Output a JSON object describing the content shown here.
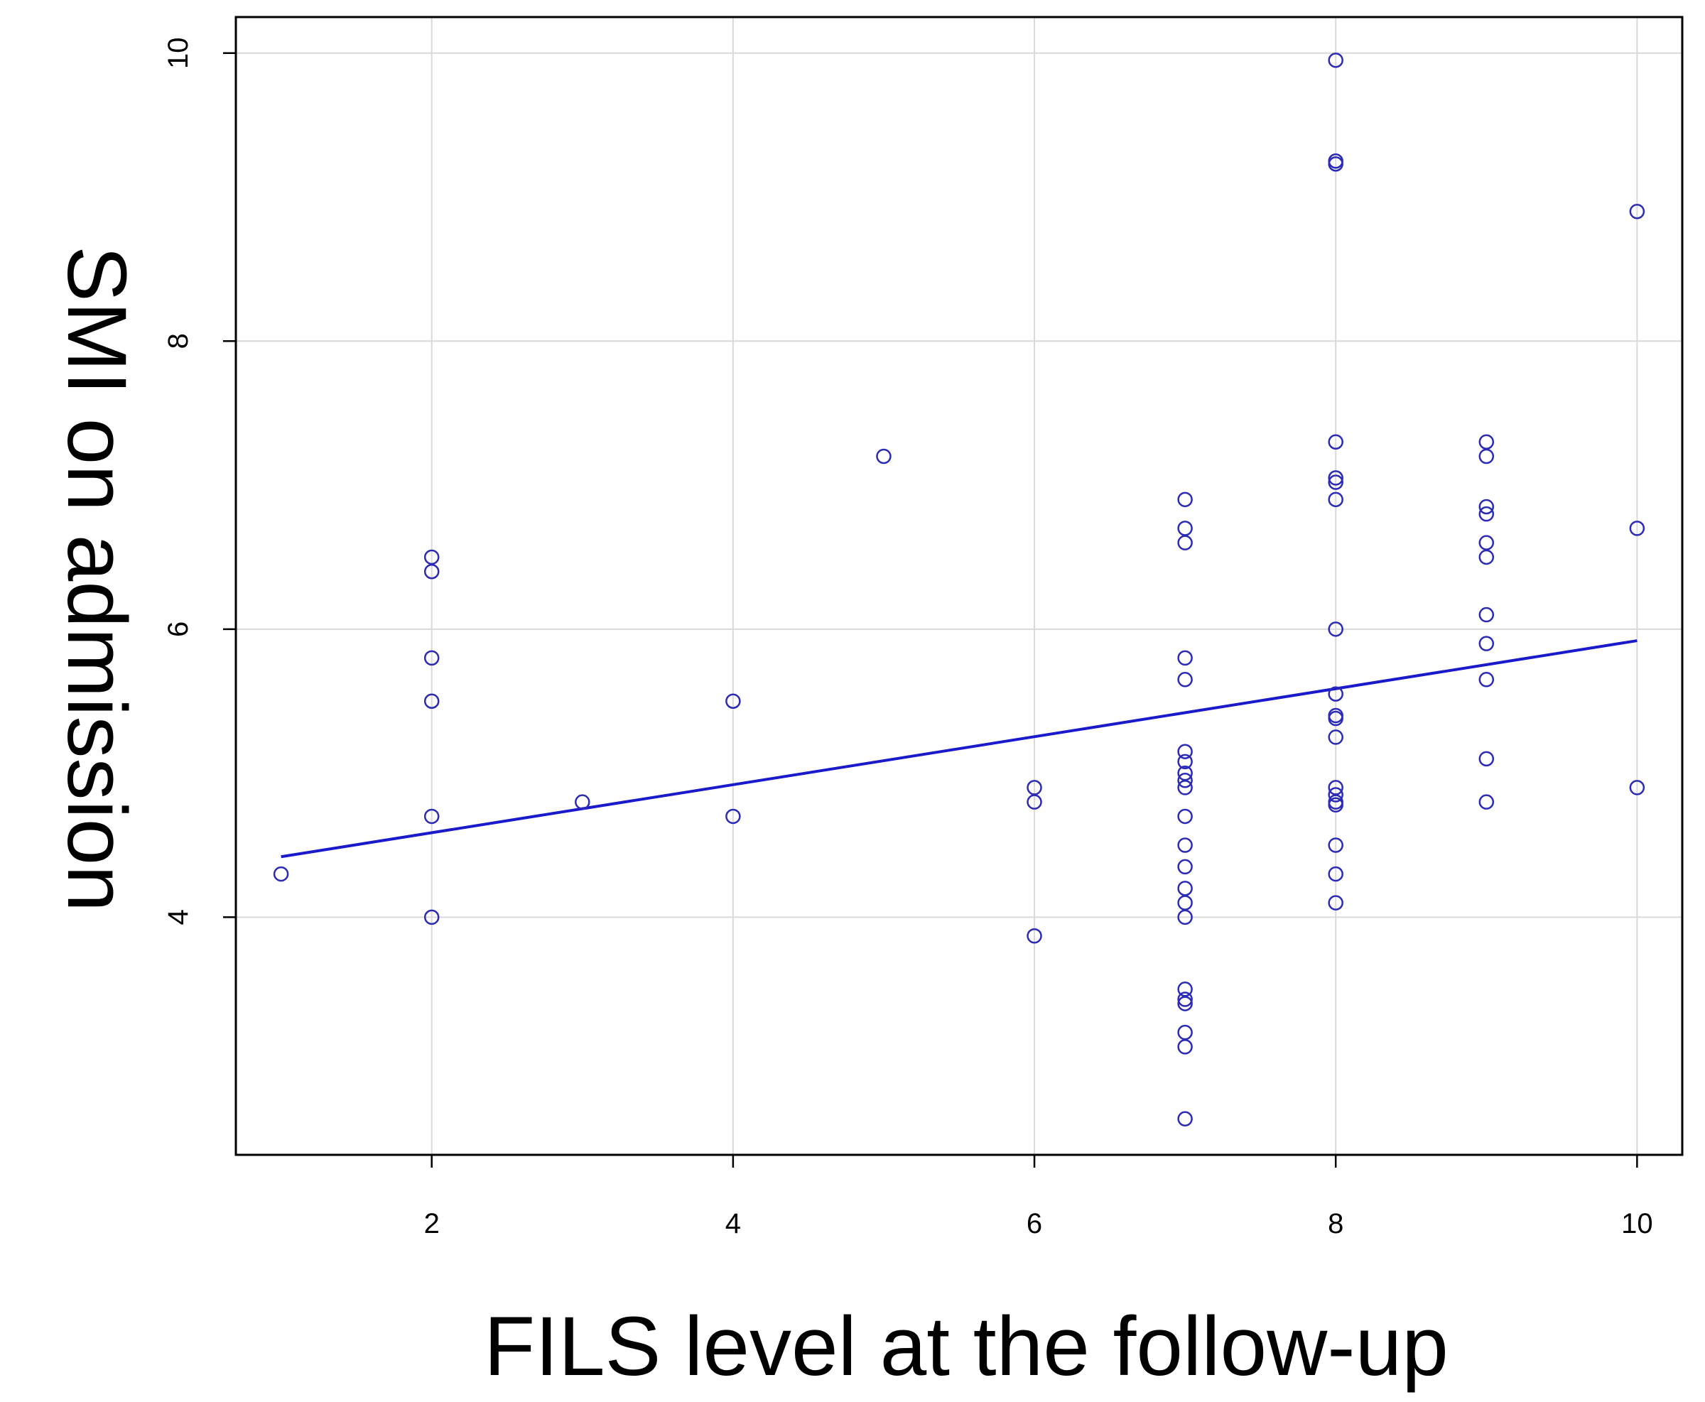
{
  "chart_data": {
    "type": "scatter",
    "title": "",
    "xlabel": "FILS level at the follow-up",
    "ylabel": "SMI on admission",
    "xlim": [
      0.7,
      10.3
    ],
    "ylim": [
      2.35,
      10.25
    ],
    "xticks": [
      2,
      4,
      6,
      8,
      10
    ],
    "yticks": [
      4,
      6,
      8,
      10
    ],
    "xtick_labels": [
      "2",
      "4",
      "6",
      "8",
      "10"
    ],
    "ytick_labels": [
      "4",
      "6",
      "8",
      "10"
    ],
    "grid": true,
    "point_color": "#2b2bb8",
    "line_color": "#1a1acc",
    "grid_color": "#d9d9d9",
    "points": [
      {
        "x": 1,
        "y": 4.3
      },
      {
        "x": 2,
        "y": 6.5
      },
      {
        "x": 2,
        "y": 6.4
      },
      {
        "x": 2,
        "y": 5.8
      },
      {
        "x": 2,
        "y": 5.5
      },
      {
        "x": 2,
        "y": 4.7
      },
      {
        "x": 2,
        "y": 4.0
      },
      {
        "x": 3,
        "y": 4.8
      },
      {
        "x": 4,
        "y": 5.5
      },
      {
        "x": 4,
        "y": 4.7
      },
      {
        "x": 5,
        "y": 7.2
      },
      {
        "x": 6,
        "y": 4.9
      },
      {
        "x": 6,
        "y": 4.8
      },
      {
        "x": 6,
        "y": 3.87
      },
      {
        "x": 7,
        "y": 6.9
      },
      {
        "x": 7,
        "y": 6.7
      },
      {
        "x": 7,
        "y": 6.6
      },
      {
        "x": 7,
        "y": 5.8
      },
      {
        "x": 7,
        "y": 5.65
      },
      {
        "x": 7,
        "y": 5.15
      },
      {
        "x": 7,
        "y": 5.08
      },
      {
        "x": 7,
        "y": 5.0
      },
      {
        "x": 7,
        "y": 4.95
      },
      {
        "x": 7,
        "y": 4.9
      },
      {
        "x": 7,
        "y": 4.7
      },
      {
        "x": 7,
        "y": 4.5
      },
      {
        "x": 7,
        "y": 4.35
      },
      {
        "x": 7,
        "y": 4.2
      },
      {
        "x": 7,
        "y": 4.1
      },
      {
        "x": 7,
        "y": 4.0
      },
      {
        "x": 7,
        "y": 3.5
      },
      {
        "x": 7,
        "y": 3.43
      },
      {
        "x": 7,
        "y": 3.4
      },
      {
        "x": 7,
        "y": 3.2
      },
      {
        "x": 7,
        "y": 3.1
      },
      {
        "x": 7,
        "y": 2.6
      },
      {
        "x": 8,
        "y": 9.95
      },
      {
        "x": 8,
        "y": 9.25
      },
      {
        "x": 8,
        "y": 9.23
      },
      {
        "x": 8,
        "y": 7.3
      },
      {
        "x": 8,
        "y": 7.05
      },
      {
        "x": 8,
        "y": 7.02
      },
      {
        "x": 8,
        "y": 6.9
      },
      {
        "x": 8,
        "y": 6.0
      },
      {
        "x": 8,
        "y": 5.55
      },
      {
        "x": 8,
        "y": 5.4
      },
      {
        "x": 8,
        "y": 5.38
      },
      {
        "x": 8,
        "y": 5.25
      },
      {
        "x": 8,
        "y": 4.9
      },
      {
        "x": 8,
        "y": 4.85
      },
      {
        "x": 8,
        "y": 4.8
      },
      {
        "x": 8,
        "y": 4.78
      },
      {
        "x": 8,
        "y": 4.5
      },
      {
        "x": 8,
        "y": 4.3
      },
      {
        "x": 8,
        "y": 4.1
      },
      {
        "x": 9,
        "y": 7.3
      },
      {
        "x": 9,
        "y": 7.2
      },
      {
        "x": 9,
        "y": 6.85
      },
      {
        "x": 9,
        "y": 6.8
      },
      {
        "x": 9,
        "y": 6.6
      },
      {
        "x": 9,
        "y": 6.5
      },
      {
        "x": 9,
        "y": 6.1
      },
      {
        "x": 9,
        "y": 5.9
      },
      {
        "x": 9,
        "y": 5.65
      },
      {
        "x": 9,
        "y": 5.1
      },
      {
        "x": 9,
        "y": 4.8
      },
      {
        "x": 10,
        "y": 8.9
      },
      {
        "x": 10,
        "y": 6.7
      },
      {
        "x": 10,
        "y": 4.9
      }
    ],
    "regression_line": {
      "x": [
        1,
        10
      ],
      "y": [
        4.42,
        5.92
      ]
    }
  }
}
